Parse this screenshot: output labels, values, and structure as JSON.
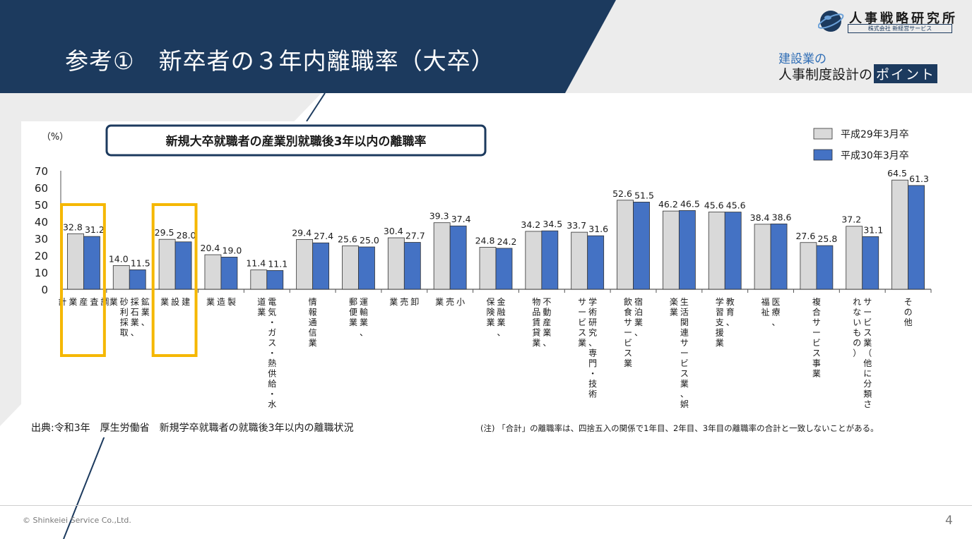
{
  "slide": {
    "title": "参考①　新卒者の３年内離職率（大卒）",
    "page_number": "4",
    "copyright": "© Shinkeiei Service Co.,Ltd."
  },
  "logo": {
    "name": "人事戦略研究所",
    "company": "株式会社 新経営サービス"
  },
  "tagline": {
    "line1": "建設業の",
    "line2_prefix": "人事制度設計の",
    "line2_highlight": "ポイント"
  },
  "source": "出典:令和3年　厚生労働省　新規学卒就職者の就職後3年以内の離職状況",
  "note": "(注) 「合計」の離職率は、四捨五入の関係で1年目、2年目、3年目の離職率の合計と一致しないことがある。",
  "colors": {
    "navy": "#1c3a5e",
    "series1": "#d9d9d9",
    "series2": "#4472c4",
    "highlight": "#f5b700"
  },
  "chart_data": {
    "type": "bar",
    "title": "新規大卒就職者の産業別就職後3年以内の離職率",
    "ylabel": "（%）",
    "ylim": [
      0,
      70
    ],
    "yticks": [
      "0",
      "10",
      "20",
      "30",
      "40",
      "50",
      "60",
      "70"
    ],
    "legend_position": "top-right",
    "categories": [
      "調査産業計",
      "鉱業、採石業、砂利採取業",
      "建設業",
      "製造業",
      "電気・ガス・熱供給・水道業",
      "情報通信業",
      "運輸業、郵便業",
      "卸売業",
      "小売業",
      "金融業、保険業",
      "不動産業、物品賃貸業",
      "学術研究、専門・技術サービス業",
      "宿泊業、飲食サービス業",
      "生活関連サービス業、娯楽業",
      "教育、学習支援業",
      "医療、福祉",
      "複合サービス事業",
      "サービス業（他に分類されないもの）",
      "その他"
    ],
    "category_lines": [
      [
        "調",
        "査",
        "産",
        "業",
        "計"
      ],
      [
        "鉱業、",
        "採石業、",
        "砂利採取",
        "業"
      ],
      [
        "建",
        "設",
        "業"
      ],
      [
        "製",
        "造",
        "業"
      ],
      [
        "電気・ガス・熱供給・水",
        "道業"
      ],
      [
        "情報通信業"
      ],
      [
        "運輸業、",
        "郵便業"
      ],
      [
        "卸",
        "売",
        "業"
      ],
      [
        "小",
        "売",
        "業"
      ],
      [
        "金融業、",
        "保険業"
      ],
      [
        "不動産業、",
        "物品賃貸業"
      ],
      [
        "学術研究、専門・技術",
        "サービス業"
      ],
      [
        "宿泊業、",
        "飲食サービス業"
      ],
      [
        "生活関連サービス業、娯",
        "楽業"
      ],
      [
        "教育、",
        "学習支援業"
      ],
      [
        "医療、",
        "福祉"
      ],
      [
        "複合サービス事業"
      ],
      [
        "サービス業（他に分類さ",
        "れないもの）"
      ],
      [
        "その他"
      ]
    ],
    "series": [
      {
        "name": "平成29年3月卒",
        "values": [
          32.8,
          14.0,
          29.5,
          20.4,
          11.4,
          29.4,
          25.6,
          30.4,
          39.3,
          24.8,
          34.2,
          33.7,
          52.6,
          46.2,
          45.6,
          38.4,
          27.6,
          37.2,
          64.5
        ],
        "labels": [
          "32.8",
          "14.0",
          "29.5",
          "20.4",
          "11.4",
          "29.4",
          "25.6",
          "30.4",
          "39.3",
          "24.8",
          "34.2",
          "33.7",
          "52.6",
          "46.2",
          "45.6",
          "38.4",
          "27.6",
          "37.2",
          "64.5"
        ]
      },
      {
        "name": "平成30年3月卒",
        "values": [
          31.2,
          11.5,
          28.0,
          19.0,
          11.1,
          27.4,
          25.0,
          27.7,
          37.4,
          24.2,
          34.5,
          31.6,
          51.5,
          46.5,
          45.6,
          38.6,
          25.8,
          31.1,
          61.3
        ],
        "labels": [
          "31.2",
          "11.5",
          "28.0",
          "19.0",
          "11.1",
          "27.4",
          "25.0",
          "27.7",
          "37.4",
          "24.2",
          "34.5",
          "31.6",
          "51.5",
          "46.5",
          "45.6",
          "38.6",
          "25.8",
          "31.1",
          "61.3"
        ]
      }
    ],
    "highlighted_categories": [
      "調査産業計",
      "建設業"
    ]
  }
}
